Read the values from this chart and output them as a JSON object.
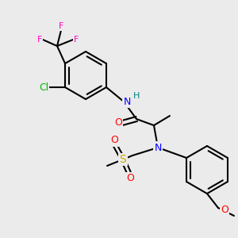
{
  "bg_color": "#ebebeb",
  "bond_color": "#000000",
  "bond_lw": 1.5,
  "atom_colors": {
    "C": "#000000",
    "N": "#0000ff",
    "O": "#ff0000",
    "F": "#ff00cc",
    "Cl": "#00bb00",
    "S": "#ccaa00",
    "H": "#008080"
  },
  "font_size": 9,
  "font_size_small": 8
}
